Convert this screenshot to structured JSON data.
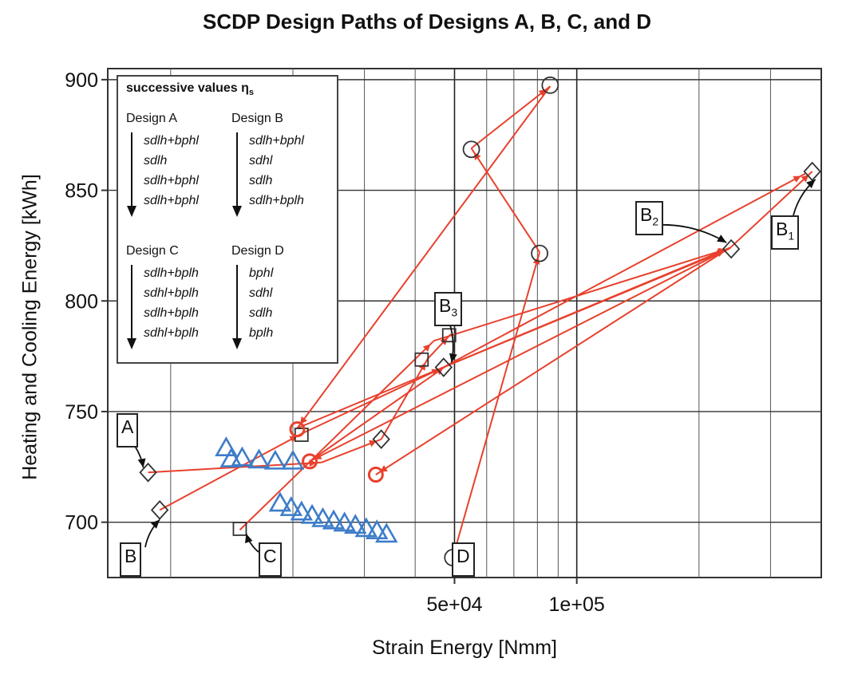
{
  "chart_data": {
    "type": "scatter",
    "title": "SCDP Design Paths of Designs A, B, C, and D",
    "xlabel": "Strain Energy [Nmm]",
    "ylabel": "Heating and Cooling Energy [kWh]",
    "x_scale": "log",
    "xlim": [
      7000,
      400000
    ],
    "ylim": [
      675,
      905
    ],
    "x_ticks": [
      {
        "value": 50000,
        "label": "5e+04"
      },
      {
        "value": 100000,
        "label": "1e+05"
      }
    ],
    "y_ticks": [
      {
        "value": 700,
        "label": "700"
      },
      {
        "value": 750,
        "label": "750"
      },
      {
        "value": 800,
        "label": "800"
      },
      {
        "value": 850,
        "label": "850"
      },
      {
        "value": 900,
        "label": "900"
      }
    ],
    "x_grid": [
      10000,
      20000,
      30000,
      40000,
      50000,
      60000,
      70000,
      80000,
      90000,
      100000,
      200000,
      300000
    ],
    "grid": true,
    "colors": {
      "path": "#e8412d",
      "circle": "#e8412d",
      "triangle": "#3d7cc9",
      "marker": "#333333"
    },
    "paths": [
      {
        "points": [
          [
            8800,
            722.5
          ],
          [
            23500,
            727
          ],
          [
            33000,
            737.5
          ],
          [
            43000,
            774
          ],
          [
            49000,
            785
          ]
        ]
      },
      {
        "points": [
          [
            9400,
            705.5
          ],
          [
            21000,
            740
          ],
          [
            47000,
            770
          ],
          [
            237000,
            823.5
          ],
          [
            380000,
            858.5
          ]
        ]
      },
      {
        "points": [
          [
            14800,
            696.5
          ],
          [
            44500,
            782
          ],
          [
            239000,
            824
          ],
          [
            22000,
            727.5
          ],
          [
            48000,
            771
          ],
          [
            365000,
            857.5
          ]
        ]
      },
      {
        "points": [
          [
            49500,
            684
          ],
          [
            81000,
            822
          ],
          [
            55000,
            869
          ],
          [
            86000,
            897
          ],
          [
            20500,
            742.5
          ],
          [
            238000,
            824
          ],
          [
            32000,
            721.5
          ]
        ]
      }
    ],
    "markers": [
      {
        "shape": "diamond",
        "points": [
          [
            8800,
            722.5
          ],
          [
            9400,
            705.5
          ],
          [
            33000,
            737.5
          ],
          [
            47000,
            770
          ],
          [
            240000,
            823.5
          ],
          [
            380000,
            858.5
          ]
        ]
      },
      {
        "shape": "square",
        "points": [
          [
            14800,
            697
          ],
          [
            21000,
            739.5
          ],
          [
            41500,
            773.5
          ],
          [
            48500,
            784.5
          ]
        ]
      },
      {
        "shape": "circle-open",
        "points": [
          [
            49500,
            684
          ],
          [
            81000,
            821.5
          ],
          [
            55000,
            868.5
          ],
          [
            86000,
            897.5
          ]
        ]
      },
      {
        "shape": "circle-red",
        "points": [
          [
            20500,
            742
          ],
          [
            22000,
            727.5
          ],
          [
            32000,
            721.5
          ]
        ]
      },
      {
        "shape": "triangle",
        "points": [
          [
            13700,
            733.5
          ],
          [
            14100,
            728.5
          ],
          [
            15000,
            729
          ],
          [
            16500,
            728
          ],
          [
            18100,
            727.5
          ],
          [
            20000,
            727.5
          ],
          [
            18600,
            708.5
          ],
          [
            19800,
            706.5
          ],
          [
            21000,
            704.5
          ],
          [
            22300,
            703
          ],
          [
            23700,
            701.5
          ],
          [
            25200,
            700.5
          ],
          [
            26800,
            699.5
          ],
          [
            28500,
            698.5
          ],
          [
            30300,
            697
          ],
          [
            32200,
            696
          ],
          [
            34000,
            694.5
          ]
        ]
      }
    ],
    "callouts": [
      {
        "id": "A",
        "label": "A",
        "sub": ""
      },
      {
        "id": "B",
        "label": "B",
        "sub": ""
      },
      {
        "id": "C",
        "label": "C",
        "sub": ""
      },
      {
        "id": "D",
        "label": "D",
        "sub": ""
      },
      {
        "id": "B1",
        "label": "B",
        "sub": "1"
      },
      {
        "id": "B2",
        "label": "B",
        "sub": "2"
      },
      {
        "id": "B3",
        "label": "B",
        "sub": "3"
      }
    ],
    "legend": {
      "title": "successive values η",
      "title_sub": "s",
      "groups": [
        {
          "name": "Design A",
          "entries": [
            "sdlh+bphl",
            "sdlh",
            "sdlh+bphl",
            "sdlh+bphl"
          ]
        },
        {
          "name": "Design B",
          "entries": [
            "sdlh+bphl",
            "sdhl",
            "sdlh",
            "sdlh+bplh"
          ]
        },
        {
          "name": "Design C",
          "entries": [
            "sdlh+bplh",
            "sdhl+bplh",
            "sdlh+bplh",
            "sdhl+bplh"
          ]
        },
        {
          "name": "Design D",
          "entries": [
            "bphl",
            "sdhl",
            "sdlh",
            "bplh"
          ]
        }
      ]
    }
  }
}
